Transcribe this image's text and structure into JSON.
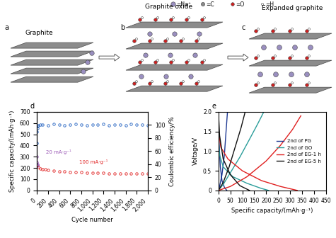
{
  "diagram": {
    "panels": [
      {
        "letter": "a",
        "title": "Graphite"
      },
      {
        "letter": "b",
        "title": "Graphite oxide"
      },
      {
        "letter": "c",
        "title": "Expanded graphite"
      }
    ],
    "atom_legend": [
      "=Na⁺",
      "=C",
      "=O",
      "=H"
    ]
  },
  "chart_data": [
    {
      "type": "scatter",
      "panel": "d",
      "xlabel": "Cycle number",
      "ylabel": "Specific capacity/(mAh·g⁻¹)",
      "y2label": "Coulombic efficiency/%",
      "xlim": [
        0,
        2000
      ],
      "xticks": [
        0,
        200,
        400,
        600,
        800,
        {
          "value": 1000,
          "label": "1,000"
        },
        {
          "value": 1200,
          "label": "1,200"
        },
        {
          "value": 1400,
          "label": "1,400"
        },
        {
          "value": 1600,
          "label": "1,600"
        },
        {
          "value": 1800,
          "label": "1,800"
        },
        {
          "value": 2000,
          "label": "2,000"
        }
      ],
      "ylim": [
        0,
        700
      ],
      "yticks": [
        0,
        100,
        200,
        300,
        400,
        500,
        600,
        700
      ],
      "y2lim": [
        0,
        120
      ],
      "y2ticks": [
        0,
        20,
        40,
        60,
        80,
        100
      ],
      "marker": "o",
      "annotations": [
        "20 mA·g⁻¹",
        "100 mA·g⁻¹"
      ],
      "series": [
        {
          "color": "#9b59b6",
          "x": [
            1,
            3,
            5,
            8,
            12
          ],
          "values": [
            300,
            250,
            235,
            225,
            220
          ]
        },
        {
          "color": "#e02020",
          "x": [
            20,
            60,
            100,
            150,
            200,
            300,
            400,
            500,
            600,
            700,
            800,
            900,
            1000,
            1100,
            1200,
            1300,
            1400,
            1500,
            1600,
            1700,
            1800,
            1900,
            2000
          ],
          "values": [
            205,
            195,
            190,
            186,
            183,
            178,
            172,
            168,
            165,
            163,
            160,
            158,
            157,
            155,
            154,
            152,
            151,
            150,
            150,
            149,
            149,
            148,
            148
          ]
        },
        {
          "color": "#2060c0",
          "axis": "y2",
          "x": [
            1,
            3,
            5,
            10,
            20,
            60,
            100,
            200,
            300,
            400,
            500,
            600,
            700,
            800,
            900,
            1000,
            1100,
            1200,
            1300,
            1400,
            1500,
            1600,
            1700,
            1800,
            1900,
            2000
          ],
          "values": [
            72,
            90,
            95,
            98,
            99,
            100,
            100,
            99,
            101,
            100,
            99,
            100,
            101,
            100,
            99,
            100,
            100,
            101,
            99,
            100,
            100,
            99,
            101,
            100,
            100,
            99
          ]
        }
      ]
    },
    {
      "type": "line",
      "panel": "e",
      "xlabel": "Specific capacity/(mAh·g⁻¹)",
      "ylabel": "Voltage/V",
      "xlim": [
        0,
        450
      ],
      "xticks": [
        0,
        50,
        100,
        150,
        200,
        250,
        300,
        350,
        400,
        450
      ],
      "ylim": [
        0,
        2.0
      ],
      "yticks": [
        0,
        0.5,
        {
          "value": 1.0,
          "label": "1.0"
        },
        1.5,
        {
          "value": 2.0,
          "label": "2.0"
        }
      ],
      "legend": "center right",
      "series": [
        {
          "name": "2nd of PG",
          "color": "#1f3a93",
          "x": [
            0,
            3,
            8,
            15,
            25,
            35,
            null,
            0,
            5,
            15,
            25,
            32,
            38
          ],
          "values": [
            2.0,
            1.2,
            0.6,
            0.25,
            0.08,
            0.0,
            null,
            0.0,
            0.1,
            0.4,
            0.9,
            1.5,
            2.0
          ]
        },
        {
          "name": "2nd of GO",
          "color": "#2a9d9a",
          "x": [
            0,
            5,
            20,
            60,
            120,
            180,
            210,
            null,
            0,
            20,
            50,
            90,
            130,
            165,
            190
          ],
          "values": [
            1.3,
            0.9,
            0.6,
            0.35,
            0.18,
            0.05,
            0.0,
            null,
            0.0,
            0.15,
            0.45,
            0.85,
            1.3,
            1.7,
            2.0
          ]
        },
        {
          "name": "2nd of EG-1 h",
          "color": "#e02020",
          "x": [
            0,
            10,
            40,
            100,
            180,
            260,
            330,
            null,
            0,
            50,
            120,
            200,
            260,
            310,
            345
          ],
          "values": [
            1.55,
            1.1,
            0.8,
            0.5,
            0.25,
            0.1,
            0.0,
            null,
            0.0,
            0.1,
            0.35,
            0.75,
            1.15,
            1.55,
            1.9
          ]
        },
        {
          "name": "2nd of EG-5 h",
          "color": "#111111",
          "x": [
            0,
            5,
            20,
            50,
            90,
            130,
            null,
            0,
            20,
            45,
            70,
            95,
            112
          ],
          "values": [
            2.0,
            1.4,
            0.8,
            0.4,
            0.12,
            0.0,
            null,
            0.0,
            0.2,
            0.6,
            1.1,
            1.6,
            2.0
          ]
        }
      ]
    }
  ]
}
